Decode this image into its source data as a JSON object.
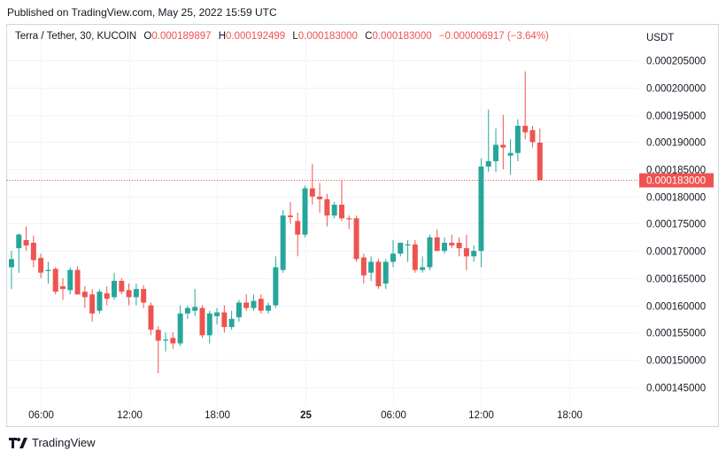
{
  "header": {
    "published": "Published on TradingView.com, May 25, 2022 15:59 UTC"
  },
  "legend": {
    "symbol": "Terra / Tether, 30, KUCOIN",
    "o_label": "O",
    "o_value": "0.000189897",
    "h_label": "H",
    "h_value": "0.000192499",
    "l_label": "L",
    "l_value": "0.000183000",
    "c_label": "C",
    "c_value": "0.000183000",
    "change": "−0.000006917 (−3.64%)"
  },
  "footer": {
    "brand": "TradingView",
    "logo_icon": "tradingview-logo-icon"
  },
  "colors": {
    "up": "#26a69a",
    "down": "#ef5350",
    "grid": "#f0f3fa",
    "text": "#131722"
  },
  "chart_data": {
    "type": "candlestick",
    "currency": "USDT",
    "y_range": [
      0.0001425,
      0.000207
    ],
    "y_ticks": [
      0.000145,
      0.00015,
      0.000155,
      0.00016,
      0.000165,
      0.00017,
      0.000175,
      0.00018,
      0.000185,
      0.00019,
      0.000195,
      0.0002,
      0.000205
    ],
    "y_tick_labels": [
      "0.000145000",
      "0.000150000",
      "0.000155000",
      "0.000160000",
      "0.000165000",
      "0.000170000",
      "0.000175000",
      "0.000180000",
      "0.000185000",
      "0.000190000",
      "0.000195000",
      "0.000200000",
      "0.000205000"
    ],
    "x_ticks": [
      {
        "index": 4,
        "label": "06:00",
        "bold": false
      },
      {
        "index": 16,
        "label": "12:00",
        "bold": false
      },
      {
        "index": 28,
        "label": "18:00",
        "bold": false
      },
      {
        "index": 40,
        "label": "25",
        "bold": true
      },
      {
        "index": 52,
        "label": "06:00",
        "bold": false
      },
      {
        "index": 64,
        "label": "12:00",
        "bold": false
      },
      {
        "index": 76,
        "label": "18:00",
        "bold": false
      }
    ],
    "index_range": [
      -0.6,
      85.3
    ],
    "last_price": 0.000183,
    "last_price_label": "0.000183000",
    "candles": [
      {
        "o": 0.000167,
        "h": 0.00017,
        "l": 0.000163,
        "c": 0.0001685
      },
      {
        "o": 0.0001705,
        "h": 0.0001732,
        "l": 0.000166,
        "c": 0.000173
      },
      {
        "o": 0.000172,
        "h": 0.0001745,
        "l": 0.00017,
        "c": 0.000171
      },
      {
        "o": 0.0001715,
        "h": 0.0001728,
        "l": 0.000167,
        "c": 0.0001683
      },
      {
        "o": 0.0001687,
        "h": 0.0001695,
        "l": 0.000165,
        "c": 0.000166
      },
      {
        "o": 0.0001663,
        "h": 0.000168,
        "l": 0.000164,
        "c": 0.0001665
      },
      {
        "o": 0.0001667,
        "h": 0.000167,
        "l": 0.000162,
        "c": 0.0001625
      },
      {
        "o": 0.0001635,
        "h": 0.000165,
        "l": 0.000161,
        "c": 0.000163
      },
      {
        "o": 0.0001628,
        "h": 0.000167,
        "l": 0.000162,
        "c": 0.0001665
      },
      {
        "o": 0.0001665,
        "h": 0.0001672,
        "l": 0.000162,
        "c": 0.000162
      },
      {
        "o": 0.0001625,
        "h": 0.0001635,
        "l": 0.0001595,
        "c": 0.0001615
      },
      {
        "o": 0.000162,
        "h": 0.000163,
        "l": 0.000157,
        "c": 0.0001585
      },
      {
        "o": 0.000159,
        "h": 0.000163,
        "l": 0.0001585,
        "c": 0.0001625
      },
      {
        "o": 0.0001622,
        "h": 0.0001635,
        "l": 0.00016,
        "c": 0.0001612
      },
      {
        "o": 0.0001615,
        "h": 0.000166,
        "l": 0.000161,
        "c": 0.0001645
      },
      {
        "o": 0.0001645,
        "h": 0.000165,
        "l": 0.000162,
        "c": 0.0001625
      },
      {
        "o": 0.0001628,
        "h": 0.000164,
        "l": 0.00016,
        "c": 0.0001615
      },
      {
        "o": 0.0001615,
        "h": 0.000164,
        "l": 0.00016,
        "c": 0.000163
      },
      {
        "o": 0.000163,
        "h": 0.0001637,
        "l": 0.0001595,
        "c": 0.0001605
      },
      {
        "o": 0.00016,
        "h": 0.0001605,
        "l": 0.0001545,
        "c": 0.0001555
      },
      {
        "o": 0.0001555,
        "h": 0.0001562,
        "l": 0.0001475,
        "c": 0.0001535
      },
      {
        "o": 0.0001535,
        "h": 0.000155,
        "l": 0.0001515,
        "c": 0.0001537
      },
      {
        "o": 0.000154,
        "h": 0.000155,
        "l": 0.000152,
        "c": 0.000153
      },
      {
        "o": 0.000153,
        "h": 0.00016,
        "l": 0.0001525,
        "c": 0.0001585
      },
      {
        "o": 0.0001585,
        "h": 0.00016,
        "l": 0.0001575,
        "c": 0.0001595
      },
      {
        "o": 0.000159,
        "h": 0.000163,
        "l": 0.000158,
        "c": 0.0001597
      },
      {
        "o": 0.0001595,
        "h": 0.00016,
        "l": 0.000154,
        "c": 0.0001545
      },
      {
        "o": 0.0001545,
        "h": 0.000159,
        "l": 0.000153,
        "c": 0.0001585
      },
      {
        "o": 0.000158,
        "h": 0.0001595,
        "l": 0.0001565,
        "c": 0.0001587
      },
      {
        "o": 0.0001587,
        "h": 0.00016,
        "l": 0.000155,
        "c": 0.000156
      },
      {
        "o": 0.000156,
        "h": 0.000159,
        "l": 0.0001555,
        "c": 0.0001575
      },
      {
        "o": 0.0001578,
        "h": 0.000161,
        "l": 0.000157,
        "c": 0.0001605
      },
      {
        "o": 0.0001605,
        "h": 0.000162,
        "l": 0.000159,
        "c": 0.0001595
      },
      {
        "o": 0.0001595,
        "h": 0.000162,
        "l": 0.000159,
        "c": 0.0001608
      },
      {
        "o": 0.0001612,
        "h": 0.000162,
        "l": 0.0001585,
        "c": 0.000159
      },
      {
        "o": 0.000159,
        "h": 0.0001605,
        "l": 0.0001585,
        "c": 0.00016
      },
      {
        "o": 0.00016,
        "h": 0.000169,
        "l": 0.0001595,
        "c": 0.000167
      },
      {
        "o": 0.0001665,
        "h": 0.0001775,
        "l": 0.000166,
        "c": 0.0001765
      },
      {
        "o": 0.0001765,
        "h": 0.000179,
        "l": 0.000175,
        "c": 0.0001762
      },
      {
        "o": 0.0001755,
        "h": 0.000177,
        "l": 0.000169,
        "c": 0.000173
      },
      {
        "o": 0.000173,
        "h": 0.000182,
        "l": 0.0001725,
        "c": 0.0001815
      },
      {
        "o": 0.0001815,
        "h": 0.000186,
        "l": 0.0001785,
        "c": 0.00018
      },
      {
        "o": 0.00018,
        "h": 0.0001825,
        "l": 0.000177,
        "c": 0.0001795
      },
      {
        "o": 0.0001795,
        "h": 0.0001805,
        "l": 0.0001745,
        "c": 0.0001765
      },
      {
        "o": 0.0001765,
        "h": 0.000179,
        "l": 0.000176,
        "c": 0.0001785
      },
      {
        "o": 0.0001785,
        "h": 0.000183,
        "l": 0.0001755,
        "c": 0.000176
      },
      {
        "o": 0.000176,
        "h": 0.0001765,
        "l": 0.000174,
        "c": 0.0001758
      },
      {
        "o": 0.000176,
        "h": 0.0001765,
        "l": 0.000168,
        "c": 0.0001685
      },
      {
        "o": 0.0001688,
        "h": 0.0001695,
        "l": 0.000164,
        "c": 0.0001655
      },
      {
        "o": 0.000166,
        "h": 0.000169,
        "l": 0.0001645,
        "c": 0.000168
      },
      {
        "o": 0.000168,
        "h": 0.0001685,
        "l": 0.000163,
        "c": 0.0001635
      },
      {
        "o": 0.000164,
        "h": 0.0001685,
        "l": 0.000163,
        "c": 0.000168
      },
      {
        "o": 0.000168,
        "h": 0.000172,
        "l": 0.000167,
        "c": 0.0001695
      },
      {
        "o": 0.0001695,
        "h": 0.000171,
        "l": 0.000169,
        "c": 0.0001715
      },
      {
        "o": 0.000171,
        "h": 0.000172,
        "l": 0.000168,
        "c": 0.0001712
      },
      {
        "o": 0.0001712,
        "h": 0.000172,
        "l": 0.000166,
        "c": 0.0001665
      },
      {
        "o": 0.0001665,
        "h": 0.000169,
        "l": 0.000166,
        "c": 0.000167
      },
      {
        "o": 0.000167,
        "h": 0.000173,
        "l": 0.0001665,
        "c": 0.0001725
      },
      {
        "o": 0.0001725,
        "h": 0.000174,
        "l": 0.00017,
        "c": 0.00017
      },
      {
        "o": 0.00017,
        "h": 0.0001725,
        "l": 0.0001695,
        "c": 0.0001715
      },
      {
        "o": 0.0001715,
        "h": 0.000173,
        "l": 0.0001705,
        "c": 0.000171
      },
      {
        "o": 0.0001715,
        "h": 0.0001725,
        "l": 0.000169,
        "c": 0.0001705
      },
      {
        "o": 0.0001705,
        "h": 0.000173,
        "l": 0.0001665,
        "c": 0.000169
      },
      {
        "o": 0.000169,
        "h": 0.000171,
        "l": 0.000168,
        "c": 0.00017
      },
      {
        "o": 0.00017,
        "h": 0.000187,
        "l": 0.000167,
        "c": 0.0001855
      },
      {
        "o": 0.0001855,
        "h": 0.000196,
        "l": 0.0001845,
        "c": 0.0001865
      },
      {
        "o": 0.0001865,
        "h": 0.0001925,
        "l": 0.0001845,
        "c": 0.0001895
      },
      {
        "o": 0.0001895,
        "h": 0.000195,
        "l": 0.000185,
        "c": 0.000189
      },
      {
        "o": 0.0001875,
        "h": 0.0001905,
        "l": 0.000184,
        "c": 0.000188
      },
      {
        "o": 0.000188,
        "h": 0.0001942,
        "l": 0.0001865,
        "c": 0.000193
      },
      {
        "o": 0.000193,
        "h": 0.000203,
        "l": 0.0001905,
        "c": 0.0001918
      },
      {
        "o": 0.0001922,
        "h": 0.000193,
        "l": 0.000189,
        "c": 0.00019
      },
      {
        "o": 0.0001899,
        "h": 0.0001925,
        "l": 0.000183,
        "c": 0.000183
      }
    ]
  }
}
